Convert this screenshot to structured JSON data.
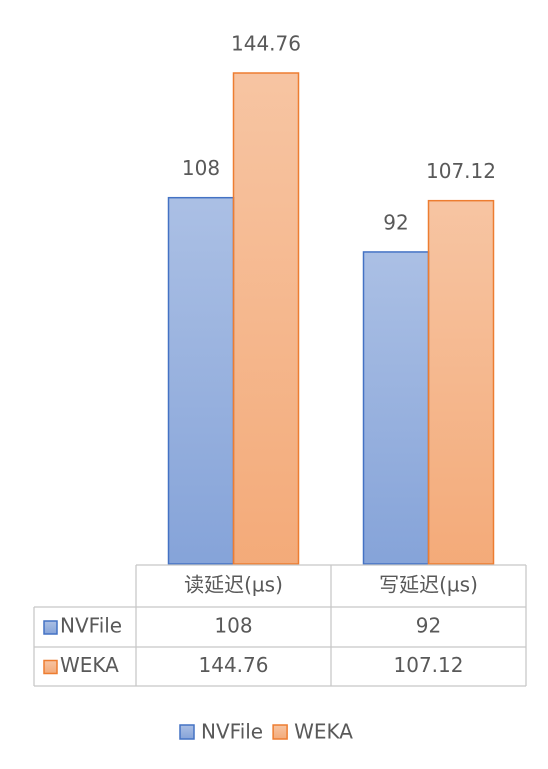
{
  "chart_data": {
    "type": "bar",
    "categories": [
      "读延迟(µs)",
      "写延迟(µs)"
    ],
    "series": [
      {
        "name": "NVFile",
        "color": "#4472c4",
        "values": [
          108,
          92
        ]
      },
      {
        "name": "WEKA",
        "color": "#ed7d31",
        "values": [
          144.76,
          107.12
        ]
      }
    ],
    "data_table": true
  }
}
